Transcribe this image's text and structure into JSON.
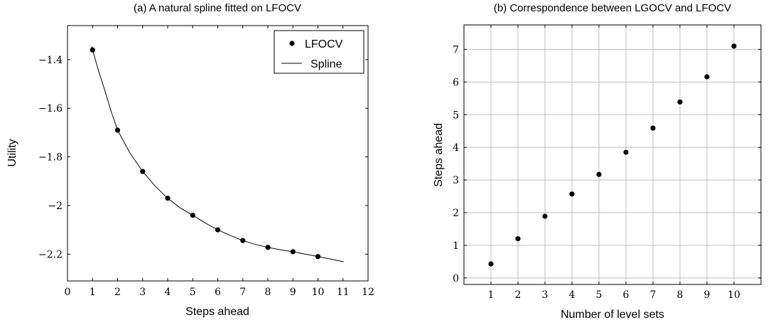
{
  "chart_data": [
    {
      "type": "line",
      "title": "(a) A natural spline fitted on LFOCV",
      "xlabel": "Steps ahead",
      "ylabel": "Utility",
      "xlim": [
        0,
        12
      ],
      "ylim": [
        -2.31,
        -1.26
      ],
      "xticks": [
        "0",
        "1",
        "2",
        "3",
        "4",
        "5",
        "6",
        "7",
        "8",
        "9",
        "10",
        "11",
        "12"
      ],
      "yticks": [
        {
          "value": -1.4,
          "label": "−1.4"
        },
        {
          "value": -1.6,
          "label": "−1.6"
        },
        {
          "value": -1.8,
          "label": "−1.8"
        },
        {
          "value": -2.0,
          "label": "−2"
        },
        {
          "value": -2.2,
          "label": "−2.2"
        }
      ],
      "grid": false,
      "legend_position": "top-right",
      "series": [
        {
          "name": "LFOCV",
          "kind": "scatter",
          "x": [
            1,
            2,
            3,
            4,
            5,
            6,
            7,
            8,
            9,
            10
          ],
          "y": [
            -1.36,
            -1.69,
            -1.86,
            -1.97,
            -2.04,
            -2.1,
            -2.144,
            -2.172,
            -2.19,
            -2.21
          ]
        },
        {
          "name": "Spline",
          "kind": "line",
          "x": [
            0.97,
            1,
            1.25,
            1.5,
            1.75,
            2,
            2.5,
            3,
            3.5,
            4,
            4.5,
            5,
            5.5,
            6,
            6.5,
            7,
            7.5,
            8,
            8.5,
            9,
            9.5,
            10,
            10.5,
            11.03
          ],
          "y": [
            -1.345,
            -1.36,
            -1.45,
            -1.53,
            -1.615,
            -1.69,
            -1.785,
            -1.86,
            -1.92,
            -1.97,
            -2.01,
            -2.04,
            -2.072,
            -2.1,
            -2.123,
            -2.144,
            -2.16,
            -2.172,
            -2.182,
            -2.19,
            -2.2,
            -2.21,
            -2.22,
            -2.231
          ]
        }
      ]
    },
    {
      "type": "scatter",
      "title": "(b) Correspondence between LGOCV and LFOCV",
      "xlabel": "Number of level sets",
      "ylabel": "Steps ahead",
      "xlim": [
        0,
        11
      ],
      "ylim": [
        -0.2,
        7.75
      ],
      "xticks": [
        "1",
        "2",
        "3",
        "4",
        "5",
        "6",
        "7",
        "8",
        "9",
        "10"
      ],
      "yticks": [
        "0",
        "1",
        "2",
        "3",
        "4",
        "5",
        "6",
        "7"
      ],
      "grid": true,
      "series": [
        {
          "x": [
            1,
            2,
            3,
            4,
            5,
            6,
            7,
            8,
            9,
            10
          ],
          "y": [
            0.43,
            1.2,
            1.89,
            2.57,
            3.17,
            3.85,
            4.59,
            5.39,
            6.16,
            7.1
          ]
        }
      ]
    }
  ]
}
